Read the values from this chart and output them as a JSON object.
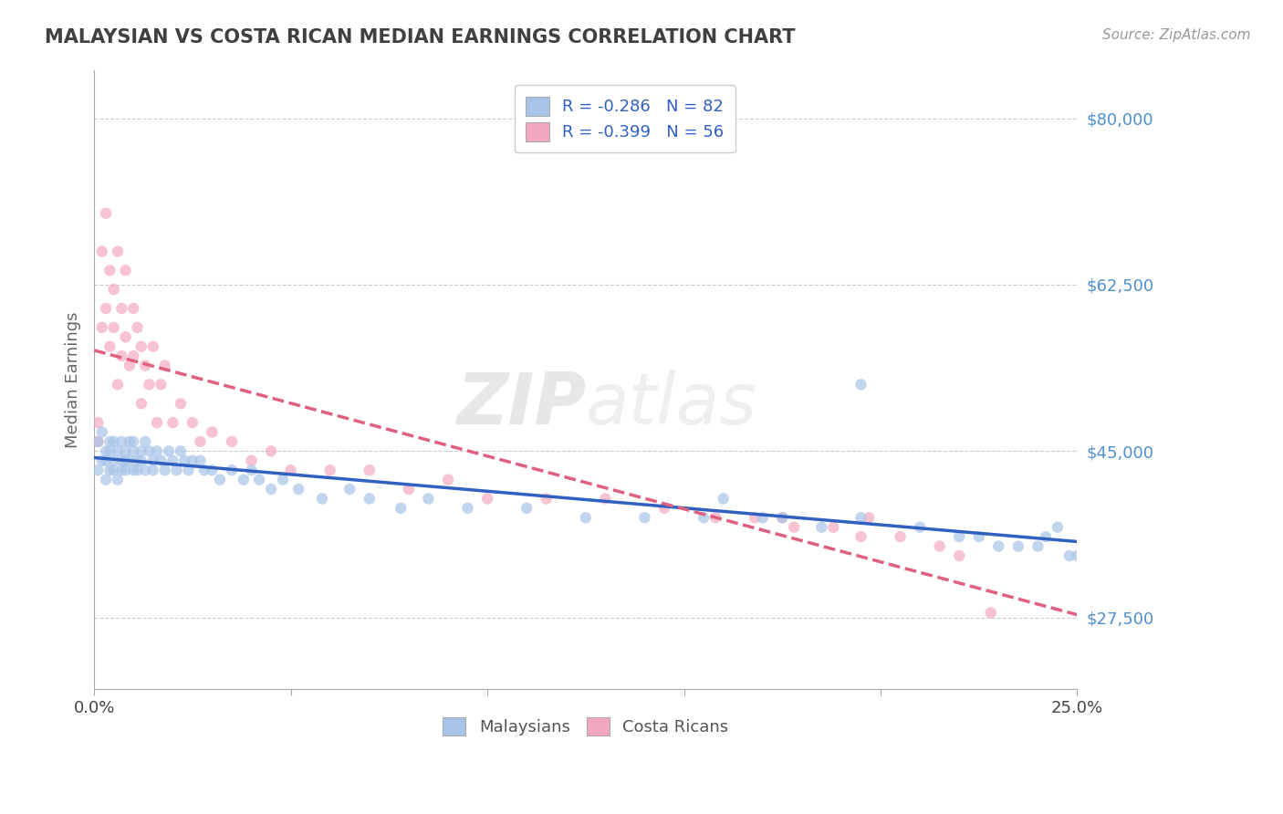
{
  "title": "MALAYSIAN VS COSTA RICAN MEDIAN EARNINGS CORRELATION CHART",
  "source_text": "Source: ZipAtlas.com",
  "ylabel": "Median Earnings",
  "watermark_zip": "ZIP",
  "watermark_atlas": "atlas",
  "xlim": [
    0.0,
    0.25
  ],
  "ylim": [
    20000,
    85000
  ],
  "yticks": [
    27500,
    45000,
    62500,
    80000
  ],
  "ytick_labels": [
    "$27,500",
    "$45,000",
    "$62,500",
    "$80,000"
  ],
  "xticks": [
    0.0,
    0.05,
    0.1,
    0.15,
    0.2,
    0.25
  ],
  "xtick_labels": [
    "0.0%",
    "",
    "",
    "",
    "",
    "25.0%"
  ],
  "legend_r1": "R = -0.286   N = 82",
  "legend_r2": "R = -0.399   N = 56",
  "legend_label1": "Malaysians",
  "legend_label2": "Costa Ricans",
  "color_malaysian": "#a8c4e8",
  "color_costarican": "#f4a8c0",
  "color_line_malaysian": "#3060c0",
  "color_line_costarican": "#e06080",
  "title_color": "#404040",
  "axis_label_color": "#666666",
  "ytick_color": "#5090d0",
  "background_color": "#ffffff",
  "grid_color": "#cccccc",
  "malaysian_x": [
    0.001,
    0.001,
    0.002,
    0.002,
    0.003,
    0.003,
    0.003,
    0.004,
    0.004,
    0.004,
    0.005,
    0.005,
    0.005,
    0.006,
    0.006,
    0.007,
    0.007,
    0.007,
    0.008,
    0.008,
    0.008,
    0.009,
    0.009,
    0.01,
    0.01,
    0.01,
    0.011,
    0.011,
    0.012,
    0.012,
    0.013,
    0.013,
    0.014,
    0.015,
    0.015,
    0.016,
    0.017,
    0.018,
    0.019,
    0.02,
    0.021,
    0.022,
    0.023,
    0.024,
    0.025,
    0.027,
    0.028,
    0.03,
    0.032,
    0.035,
    0.038,
    0.04,
    0.042,
    0.045,
    0.048,
    0.052,
    0.058,
    0.065,
    0.07,
    0.078,
    0.085,
    0.095,
    0.11,
    0.125,
    0.14,
    0.155,
    0.17,
    0.185,
    0.195,
    0.21,
    0.225,
    0.235,
    0.24,
    0.245,
    0.248,
    0.195,
    0.175,
    0.16,
    0.22,
    0.23,
    0.242,
    0.25
  ],
  "malaysian_y": [
    43000,
    46000,
    44000,
    47000,
    42000,
    45000,
    44000,
    46000,
    43000,
    45000,
    44000,
    43000,
    46000,
    42000,
    45000,
    44000,
    46000,
    43000,
    45000,
    44000,
    43000,
    46000,
    44000,
    45000,
    43000,
    46000,
    44000,
    43000,
    45000,
    44000,
    46000,
    43000,
    45000,
    44000,
    43000,
    45000,
    44000,
    43000,
    45000,
    44000,
    43000,
    45000,
    44000,
    43000,
    44000,
    44000,
    43000,
    43000,
    42000,
    43000,
    42000,
    43000,
    42000,
    41000,
    42000,
    41000,
    40000,
    41000,
    40000,
    39000,
    40000,
    39000,
    39000,
    38000,
    38000,
    38000,
    38000,
    37000,
    38000,
    37000,
    36000,
    35000,
    35000,
    37000,
    34000,
    52000,
    38000,
    40000,
    36000,
    35000,
    36000,
    34000
  ],
  "costarican_x": [
    0.001,
    0.001,
    0.002,
    0.002,
    0.003,
    0.003,
    0.004,
    0.004,
    0.005,
    0.005,
    0.006,
    0.006,
    0.007,
    0.007,
    0.008,
    0.008,
    0.009,
    0.01,
    0.01,
    0.011,
    0.012,
    0.012,
    0.013,
    0.014,
    0.015,
    0.016,
    0.017,
    0.018,
    0.02,
    0.022,
    0.025,
    0.027,
    0.03,
    0.035,
    0.04,
    0.045,
    0.05,
    0.06,
    0.07,
    0.08,
    0.09,
    0.1,
    0.115,
    0.13,
    0.145,
    0.158,
    0.168,
    0.178,
    0.188,
    0.195,
    0.205,
    0.215,
    0.22,
    0.197,
    0.175,
    0.228
  ],
  "costarican_y": [
    46000,
    48000,
    66000,
    58000,
    70000,
    60000,
    64000,
    56000,
    62000,
    58000,
    66000,
    52000,
    60000,
    55000,
    64000,
    57000,
    54000,
    60000,
    55000,
    58000,
    56000,
    50000,
    54000,
    52000,
    56000,
    48000,
    52000,
    54000,
    48000,
    50000,
    48000,
    46000,
    47000,
    46000,
    44000,
    45000,
    43000,
    43000,
    43000,
    41000,
    42000,
    40000,
    40000,
    40000,
    39000,
    38000,
    38000,
    37000,
    37000,
    36000,
    36000,
    35000,
    34000,
    38000,
    38000,
    28000
  ]
}
